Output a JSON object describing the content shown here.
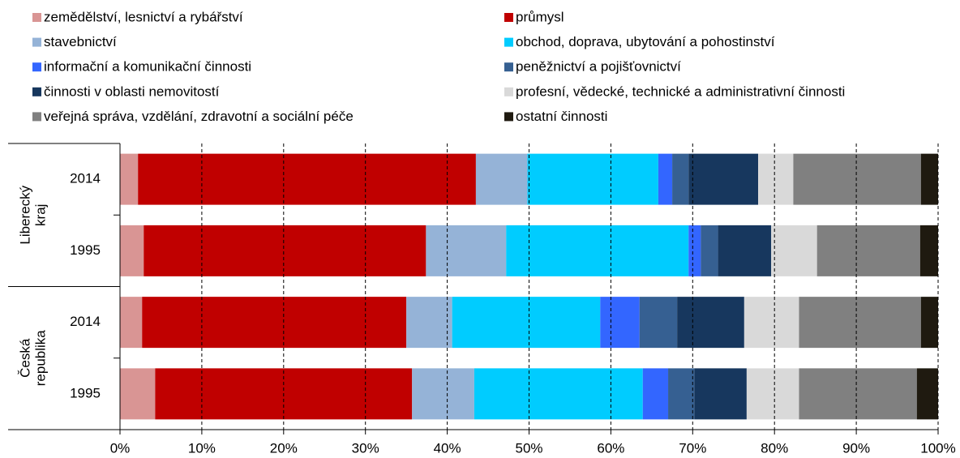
{
  "chart_data": {
    "type": "stacked_barh",
    "categories": [
      "2014",
      "1995",
      "2014",
      "1995"
    ],
    "groups": [
      {
        "label": [
          "Liberecký",
          "kraj"
        ],
        "categories": [
          0,
          1
        ]
      },
      {
        "label": [
          "Česká",
          "republika"
        ],
        "categories": [
          2,
          3
        ]
      }
    ],
    "series": [
      {
        "name": "zemědělství, lesnictví a rybářství",
        "color": "#d99594",
        "values": [
          2.2,
          2.9,
          2.7,
          4.3
        ]
      },
      {
        "name": "průmysl",
        "color": "#c00000",
        "values": [
          41.3,
          34.5,
          32.3,
          31.4
        ]
      },
      {
        "name": "stavebnictví",
        "color": "#95b3d7",
        "values": [
          6.3,
          9.8,
          5.6,
          7.6
        ]
      },
      {
        "name": "obchod, doprava, ubytování a pohostinství",
        "color": "#00ccff",
        "values": [
          16.0,
          22.3,
          18.1,
          20.6
        ]
      },
      {
        "name": "informační a komunikační činnosti",
        "color": "#3366ff",
        "values": [
          1.7,
          1.5,
          4.8,
          3.1
        ]
      },
      {
        "name": "peněžnictví a pojišťovnictví",
        "color": "#366092",
        "values": [
          2.0,
          2.1,
          4.6,
          3.2
        ]
      },
      {
        "name": "činnosti v oblasti nemovitostí",
        "color": "#17375e",
        "values": [
          8.5,
          6.5,
          8.2,
          6.4
        ]
      },
      {
        "name": "profesní, vědecké, technické a administrativní činnosti",
        "color": "#d9d9d9",
        "values": [
          4.3,
          5.6,
          6.7,
          6.4
        ]
      },
      {
        "name": "veřejná správa, vzdělání, zdravotní a sociální péče",
        "color": "#808080",
        "values": [
          15.6,
          12.6,
          14.9,
          14.4
        ]
      },
      {
        "name": "ostatní činnosti",
        "color": "#1f1a10",
        "values": [
          2.1,
          2.2,
          2.1,
          2.6
        ]
      }
    ],
    "xlim": [
      0,
      100
    ],
    "xticks": [
      {
        "value": 0,
        "label": "0%"
      },
      {
        "value": 10,
        "label": "10%"
      },
      {
        "value": 20,
        "label": "20%"
      },
      {
        "value": 30,
        "label": "30%"
      },
      {
        "value": 40,
        "label": "40%"
      },
      {
        "value": 50,
        "label": "50%"
      },
      {
        "value": 60,
        "label": "60%"
      },
      {
        "value": 70,
        "label": "70%"
      },
      {
        "value": 80,
        "label": "80%"
      },
      {
        "value": 90,
        "label": "90%"
      },
      {
        "value": 100,
        "label": "100%"
      }
    ],
    "grid": true,
    "legend": "top"
  }
}
